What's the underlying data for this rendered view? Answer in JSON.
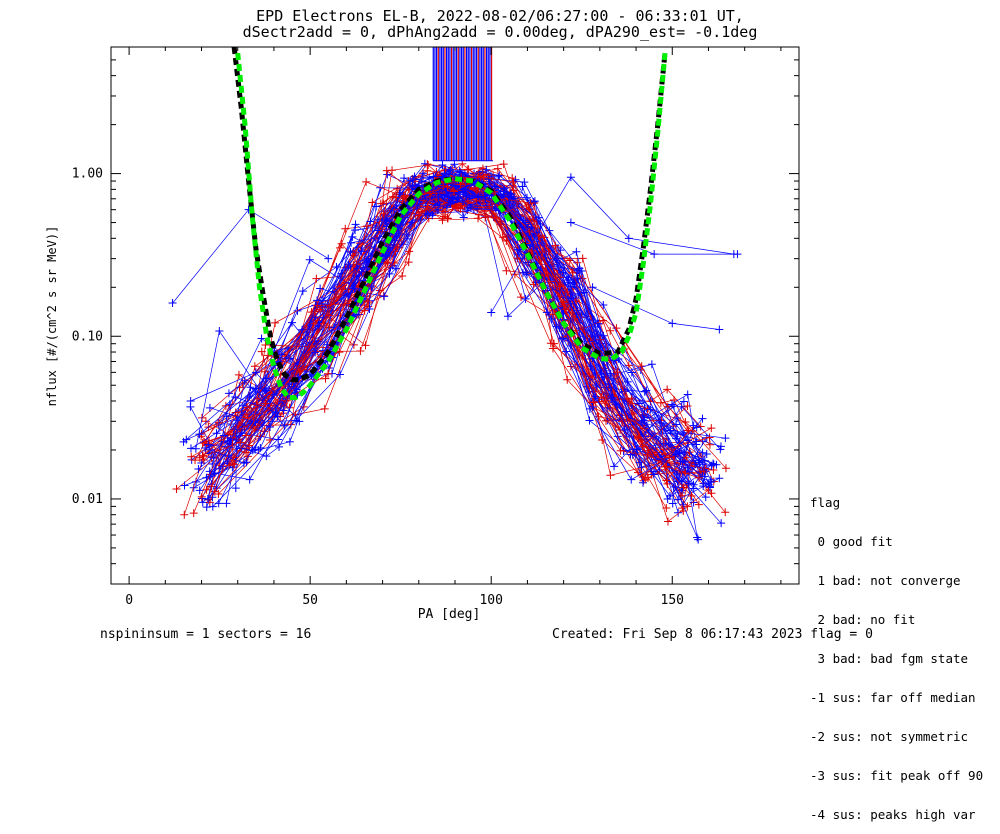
{
  "header": {
    "title_line1": "EPD Electrons EL-B, 2022-08-02/06:27:00 - 06:33:01 UT,",
    "title_line2": "dSectr2add = 0, dPhAng2add = 0.00deg, dPA290_est=  -0.1deg"
  },
  "footer": {
    "left": "nspininsum =  1  sectors = 16",
    "right": "Created: Fri Sep  8 06:17:43 2023   flag = 0"
  },
  "legend": {
    "title": "flag",
    "items": [
      " 0 good fit",
      " 1 bad: not converge",
      " 2 bad: no fit",
      " 3 bad: bad fgm state",
      "-1 sus: far off median",
      "-2 sus: not symmetric",
      "-3 sus: fit peak off 90",
      "-4 sus: peaks high var"
    ]
  },
  "chart_data": {
    "type": "line",
    "title": "EPD Electrons EL-B, 2022-08-02/06:27:00 - 06:33:01 UT, dSectr2add = 0, dPhAng2add = 0.00deg, dPA290_est=  -0.1deg",
    "xlabel": "PA [deg]",
    "ylabel": "nflux [#/(cm^2 s sr MeV)]",
    "xlim": [
      -5,
      185
    ],
    "ylim": [
      0.003,
      6.0
    ],
    "yscale": "log",
    "x_ticks": [
      0,
      50,
      100,
      150
    ],
    "y_ticks": [
      0.01,
      0.1,
      1.0
    ],
    "y_tick_labels": [
      "0.01",
      "0.10",
      "1.00"
    ],
    "colors": {
      "measured_a": "#0000ff",
      "measured_b": "#dd0000",
      "fit": "#00ee00",
      "median": "#000000"
    },
    "series": [
      {
        "role": "median fit (black dashed)",
        "x": [
          29,
          31,
          33,
          35,
          37,
          39,
          41,
          43,
          45,
          47,
          50,
          55,
          60,
          65,
          70,
          75,
          80,
          85,
          90,
          95,
          100,
          105,
          110,
          115,
          120,
          125,
          130,
          135,
          138,
          140,
          142,
          144,
          146,
          148
        ],
        "y": [
          6.0,
          2.5,
          0.9,
          0.35,
          0.18,
          0.1,
          0.07,
          0.058,
          0.054,
          0.054,
          0.058,
          0.08,
          0.13,
          0.22,
          0.38,
          0.6,
          0.8,
          0.9,
          0.93,
          0.9,
          0.78,
          0.55,
          0.33,
          0.19,
          0.12,
          0.09,
          0.078,
          0.08,
          0.11,
          0.17,
          0.35,
          0.8,
          2.0,
          5.5
        ]
      },
      {
        "role": "fit (green dashed)",
        "x": [
          30,
          32,
          34,
          36,
          38,
          40,
          42,
          44,
          46,
          48,
          50,
          55,
          60,
          65,
          70,
          75,
          80,
          85,
          90,
          95,
          100,
          105,
          110,
          115,
          120,
          125,
          130,
          133,
          136,
          138,
          140,
          142,
          144,
          146,
          148
        ],
        "y": [
          5.5,
          2.0,
          0.55,
          0.2,
          0.1,
          0.065,
          0.048,
          0.042,
          0.042,
          0.045,
          0.05,
          0.07,
          0.11,
          0.19,
          0.33,
          0.55,
          0.75,
          0.88,
          0.93,
          0.9,
          0.76,
          0.52,
          0.32,
          0.19,
          0.12,
          0.085,
          0.073,
          0.072,
          0.08,
          0.1,
          0.14,
          0.28,
          0.65,
          1.8,
          5.5
        ]
      }
    ]
  }
}
